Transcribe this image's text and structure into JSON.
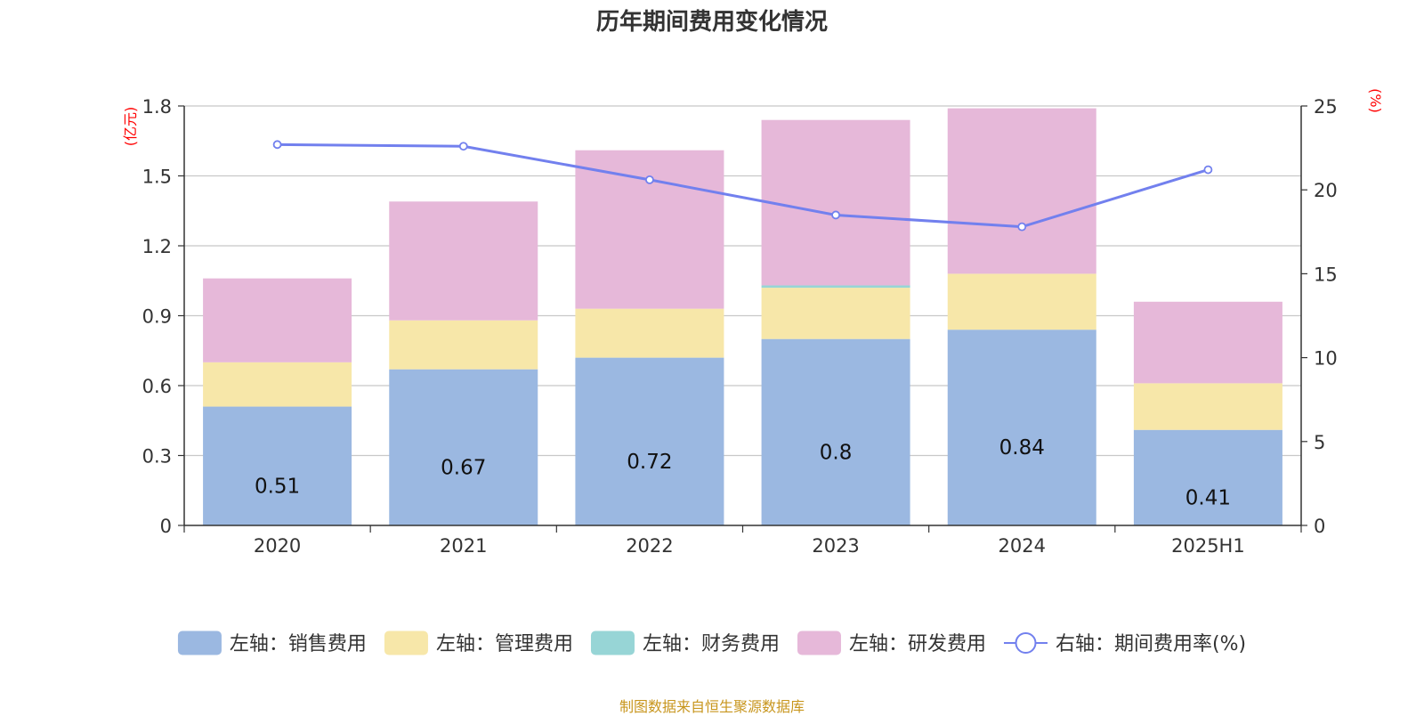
{
  "chart_data": {
    "type": "bar",
    "title": "历年期间费用变化情况",
    "categories": [
      "2020",
      "2021",
      "2022",
      "2023",
      "2024",
      "2025H1"
    ],
    "stacked": true,
    "y_left": {
      "label": "(亿元)",
      "range": [
        0,
        1.8
      ],
      "ticks": [
        "0",
        "0.3",
        "0.6",
        "0.9",
        "1.2",
        "1.5",
        "1.8"
      ],
      "tick_values": [
        0,
        0.3,
        0.6,
        0.9,
        1.2,
        1.5,
        1.8
      ]
    },
    "y_right": {
      "label": "(%)",
      "range": [
        0,
        25
      ],
      "ticks": [
        "0",
        "5",
        "10",
        "15",
        "20",
        "25"
      ],
      "tick_values": [
        0,
        5,
        10,
        15,
        20,
        25
      ]
    },
    "series": [
      {
        "name": "左轴：销售费用",
        "axis": "left",
        "type": "bar",
        "color": "#9bb8e1",
        "values": [
          0.51,
          0.67,
          0.72,
          0.8,
          0.84,
          0.41
        ],
        "data_labels": [
          "0.51",
          "0.67",
          "0.72",
          "0.8",
          "0.84",
          "0.41"
        ]
      },
      {
        "name": "左轴：管理费用",
        "axis": "left",
        "type": "bar",
        "color": "#f7e7a9",
        "values": [
          0.19,
          0.21,
          0.21,
          0.22,
          0.24,
          0.2
        ]
      },
      {
        "name": "左轴：财务费用",
        "axis": "left",
        "type": "bar",
        "color": "#97d5d6",
        "values": [
          0.0,
          0.0,
          0.0,
          0.01,
          0.0,
          0.0
        ]
      },
      {
        "name": "左轴：研发费用",
        "axis": "left",
        "type": "bar",
        "color": "#e6b8d9",
        "values": [
          0.36,
          0.51,
          0.68,
          0.71,
          0.71,
          0.35
        ]
      },
      {
        "name": "右轴：期间费用率(%)",
        "axis": "right",
        "type": "line",
        "color": "#7280ee",
        "values": [
          22.7,
          22.6,
          20.6,
          18.5,
          17.8,
          21.2
        ]
      }
    ],
    "grid": true,
    "legend_position": "bottom",
    "axis_label_color": "#ff0000"
  },
  "footer": {
    "source": "制图数据来自恒生聚源数据库"
  }
}
